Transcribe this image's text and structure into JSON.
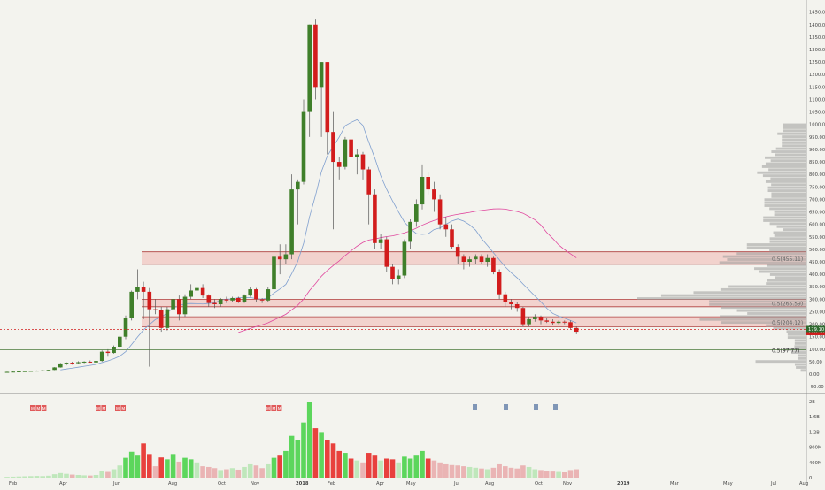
{
  "colors": {
    "background": "#f3f3ee",
    "up": "#3f7f2a",
    "down": "#d21c1c",
    "vol_up": "#5cd65c",
    "vol_down": "#e8413d",
    "vol_up_light": "#bfe7bb",
    "vol_down_light": "#eab4b4",
    "ma_short": "#7f9fcf",
    "ma_long": "#e0479e",
    "zone_fill": "#f1b7b2",
    "zone_line": "#b0403e",
    "profile": "#9a9a9a",
    "marker_red": "#e05a5a",
    "marker_blue": "#7f96b6"
  },
  "chart_data": {
    "type": "candlestick",
    "interval": "weekly",
    "y_axis": {
      "ticks": [
        1450,
        1400,
        1350,
        1300,
        1250,
        1200,
        1150,
        1100,
        1050,
        1000,
        950,
        900,
        850,
        800,
        750,
        700,
        650,
        600,
        550,
        500,
        450,
        400,
        350,
        300,
        250,
        200,
        150,
        100,
        50,
        0,
        -50
      ],
      "tick_labels": [
        "1450.00",
        "1400.00",
        "1350.00",
        "1300.00",
        "1250.00",
        "1200.00",
        "1150.00",
        "1100.00",
        "1050.00",
        "1000.00",
        "950.00",
        "900.00",
        "850.00",
        "800.00",
        "750.00",
        "700.00",
        "650.00",
        "600.00",
        "550.00",
        "500.00",
        "450.00",
        "400.00",
        "350.00",
        "300.00",
        "250.00",
        "200.00",
        "150.00",
        "100.00",
        "50.00",
        "0.00",
        "-50.00"
      ],
      "range": [
        -60,
        1470
      ],
      "last_price": 170.36,
      "last_price_label": "170.36",
      "ref_price": 179.1,
      "ref_price_label": "179.10"
    },
    "volume_axis": {
      "ticks": [
        2000000000,
        1600000000,
        1200000000,
        800000000,
        400000000,
        0
      ],
      "tick_labels": [
        "2B",
        "1.6B",
        "1.2B",
        "800M",
        "400M",
        "0"
      ]
    },
    "x_axis": {
      "labels": [
        "Feb",
        "Apr",
        "Jun",
        "Aug",
        "Oct",
        "Nov",
        "2018",
        "Feb",
        "Apr",
        "May",
        "Jul",
        "Aug",
        "Oct",
        "Nov",
        "2019",
        "Mar",
        "May",
        "Jul",
        "Aug"
      ]
    },
    "candles": [
      {
        "o": 8,
        "h": 10,
        "l": 7,
        "c": 9,
        "v": 20
      },
      {
        "o": 9,
        "h": 11,
        "l": 8,
        "c": 10,
        "v": 25
      },
      {
        "o": 10,
        "h": 12,
        "l": 9,
        "c": 11,
        "v": 30
      },
      {
        "o": 11,
        "h": 13,
        "l": 10,
        "c": 12,
        "v": 35
      },
      {
        "o": 12,
        "h": 14,
        "l": 11,
        "c": 13,
        "v": 40
      },
      {
        "o": 13,
        "h": 15,
        "l": 12,
        "c": 14,
        "v": 45
      },
      {
        "o": 14,
        "h": 16,
        "l": 13,
        "c": 15,
        "v": 40
      },
      {
        "o": 15,
        "h": 18,
        "l": 14,
        "c": 17,
        "v": 50
      },
      {
        "o": 17,
        "h": 28,
        "l": 16,
        "c": 27,
        "v": 90
      },
      {
        "o": 27,
        "h": 45,
        "l": 26,
        "c": 43,
        "v": 120
      },
      {
        "o": 43,
        "h": 48,
        "l": 35,
        "c": 46,
        "v": 100
      },
      {
        "o": 46,
        "h": 50,
        "l": 38,
        "c": 44,
        "v": 80
      },
      {
        "o": 44,
        "h": 52,
        "l": 40,
        "c": 48,
        "v": 70
      },
      {
        "o": 48,
        "h": 52,
        "l": 44,
        "c": 50,
        "v": 60
      },
      {
        "o": 50,
        "h": 55,
        "l": 46,
        "c": 47,
        "v": 55
      },
      {
        "o": 47,
        "h": 55,
        "l": 42,
        "c": 53,
        "v": 70
      },
      {
        "o": 53,
        "h": 95,
        "l": 50,
        "c": 90,
        "v": 180
      },
      {
        "o": 90,
        "h": 100,
        "l": 70,
        "c": 85,
        "v": 150
      },
      {
        "o": 85,
        "h": 115,
        "l": 82,
        "c": 110,
        "v": 220
      },
      {
        "o": 110,
        "h": 155,
        "l": 105,
        "c": 150,
        "v": 320
      },
      {
        "o": 150,
        "h": 235,
        "l": 140,
        "c": 225,
        "v": 520
      },
      {
        "o": 225,
        "h": 335,
        "l": 215,
        "c": 330,
        "v": 680
      },
      {
        "o": 330,
        "h": 420,
        "l": 300,
        "c": 350,
        "v": 600
      },
      {
        "o": 350,
        "h": 370,
        "l": 220,
        "c": 330,
        "v": 900
      },
      {
        "o": 330,
        "h": 345,
        "l": 30,
        "c": 260,
        "v": 620
      },
      {
        "o": 260,
        "h": 300,
        "l": 240,
        "c": 258,
        "v": 300
      },
      {
        "o": 258,
        "h": 270,
        "l": 170,
        "c": 185,
        "v": 530
      },
      {
        "o": 185,
        "h": 270,
        "l": 175,
        "c": 260,
        "v": 480
      },
      {
        "o": 260,
        "h": 305,
        "l": 245,
        "c": 300,
        "v": 620
      },
      {
        "o": 300,
        "h": 315,
        "l": 215,
        "c": 240,
        "v": 420
      },
      {
        "o": 240,
        "h": 320,
        "l": 230,
        "c": 310,
        "v": 520
      },
      {
        "o": 310,
        "h": 360,
        "l": 300,
        "c": 335,
        "v": 480
      },
      {
        "o": 335,
        "h": 355,
        "l": 300,
        "c": 345,
        "v": 400
      },
      {
        "o": 345,
        "h": 360,
        "l": 305,
        "c": 315,
        "v": 300
      },
      {
        "o": 315,
        "h": 320,
        "l": 270,
        "c": 285,
        "v": 280
      },
      {
        "o": 285,
        "h": 300,
        "l": 265,
        "c": 280,
        "v": 250
      },
      {
        "o": 280,
        "h": 305,
        "l": 270,
        "c": 300,
        "v": 200
      },
      {
        "o": 300,
        "h": 310,
        "l": 285,
        "c": 295,
        "v": 220
      },
      {
        "o": 295,
        "h": 310,
        "l": 290,
        "c": 305,
        "v": 250
      },
      {
        "o": 305,
        "h": 310,
        "l": 285,
        "c": 290,
        "v": 210
      },
      {
        "o": 290,
        "h": 320,
        "l": 285,
        "c": 315,
        "v": 280
      },
      {
        "o": 315,
        "h": 350,
        "l": 310,
        "c": 340,
        "v": 350
      },
      {
        "o": 340,
        "h": 345,
        "l": 290,
        "c": 300,
        "v": 320
      },
      {
        "o": 300,
        "h": 305,
        "l": 285,
        "c": 295,
        "v": 250
      },
      {
        "o": 295,
        "h": 350,
        "l": 290,
        "c": 340,
        "v": 350
      },
      {
        "o": 340,
        "h": 480,
        "l": 330,
        "c": 470,
        "v": 520
      },
      {
        "o": 470,
        "h": 520,
        "l": 400,
        "c": 460,
        "v": 600
      },
      {
        "o": 460,
        "h": 520,
        "l": 440,
        "c": 480,
        "v": 700
      },
      {
        "o": 480,
        "h": 800,
        "l": 460,
        "c": 740,
        "v": 1100
      },
      {
        "o": 740,
        "h": 780,
        "l": 600,
        "c": 770,
        "v": 1000
      },
      {
        "o": 770,
        "h": 1100,
        "l": 760,
        "c": 1050,
        "v": 1450
      },
      {
        "o": 1050,
        "h": 1400,
        "l": 950,
        "c": 1400,
        "v": 2000
      },
      {
        "o": 1400,
        "h": 1420,
        "l": 1100,
        "c": 1150,
        "v": 1300
      },
      {
        "o": 1150,
        "h": 1250,
        "l": 950,
        "c": 1250,
        "v": 1200
      },
      {
        "o": 1250,
        "h": 1250,
        "l": 880,
        "c": 970,
        "v": 1000
      },
      {
        "o": 970,
        "h": 1050,
        "l": 580,
        "c": 850,
        "v": 900
      },
      {
        "o": 850,
        "h": 870,
        "l": 780,
        "c": 830,
        "v": 700
      },
      {
        "o": 830,
        "h": 950,
        "l": 820,
        "c": 940,
        "v": 650
      },
      {
        "o": 940,
        "h": 960,
        "l": 850,
        "c": 870,
        "v": 500
      },
      {
        "o": 870,
        "h": 900,
        "l": 800,
        "c": 880,
        "v": 450
      },
      {
        "o": 880,
        "h": 890,
        "l": 780,
        "c": 820,
        "v": 400
      },
      {
        "o": 820,
        "h": 830,
        "l": 600,
        "c": 720,
        "v": 650
      },
      {
        "o": 720,
        "h": 740,
        "l": 500,
        "c": 525,
        "v": 600
      },
      {
        "o": 525,
        "h": 560,
        "l": 500,
        "c": 540,
        "v": 450
      },
      {
        "o": 540,
        "h": 550,
        "l": 410,
        "c": 430,
        "v": 500
      },
      {
        "o": 430,
        "h": 440,
        "l": 360,
        "c": 380,
        "v": 480
      },
      {
        "o": 380,
        "h": 420,
        "l": 360,
        "c": 395,
        "v": 400
      },
      {
        "o": 395,
        "h": 540,
        "l": 385,
        "c": 530,
        "v": 550
      },
      {
        "o": 530,
        "h": 620,
        "l": 500,
        "c": 610,
        "v": 500
      },
      {
        "o": 610,
        "h": 700,
        "l": 590,
        "c": 680,
        "v": 600
      },
      {
        "o": 680,
        "h": 840,
        "l": 660,
        "c": 790,
        "v": 700
      },
      {
        "o": 790,
        "h": 810,
        "l": 720,
        "c": 740,
        "v": 500
      },
      {
        "o": 740,
        "h": 770,
        "l": 650,
        "c": 700,
        "v": 450
      },
      {
        "o": 700,
        "h": 720,
        "l": 580,
        "c": 600,
        "v": 400
      },
      {
        "o": 600,
        "h": 630,
        "l": 550,
        "c": 580,
        "v": 350
      },
      {
        "o": 580,
        "h": 600,
        "l": 500,
        "c": 510,
        "v": 330
      },
      {
        "o": 510,
        "h": 520,
        "l": 440,
        "c": 470,
        "v": 320
      },
      {
        "o": 470,
        "h": 480,
        "l": 420,
        "c": 450,
        "v": 300
      },
      {
        "o": 450,
        "h": 470,
        "l": 430,
        "c": 460,
        "v": 280
      },
      {
        "o": 460,
        "h": 480,
        "l": 440,
        "c": 470,
        "v": 260
      },
      {
        "o": 470,
        "h": 480,
        "l": 440,
        "c": 450,
        "v": 240
      },
      {
        "o": 450,
        "h": 480,
        "l": 430,
        "c": 465,
        "v": 220
      },
      {
        "o": 465,
        "h": 470,
        "l": 400,
        "c": 410,
        "v": 260
      },
      {
        "o": 410,
        "h": 420,
        "l": 300,
        "c": 320,
        "v": 350
      },
      {
        "o": 320,
        "h": 330,
        "l": 270,
        "c": 290,
        "v": 300
      },
      {
        "o": 290,
        "h": 300,
        "l": 260,
        "c": 280,
        "v": 260
      },
      {
        "o": 280,
        "h": 290,
        "l": 250,
        "c": 265,
        "v": 240
      },
      {
        "o": 265,
        "h": 270,
        "l": 190,
        "c": 200,
        "v": 320
      },
      {
        "o": 200,
        "h": 230,
        "l": 190,
        "c": 220,
        "v": 280
      },
      {
        "o": 220,
        "h": 240,
        "l": 210,
        "c": 230,
        "v": 220
      },
      {
        "o": 230,
        "h": 235,
        "l": 200,
        "c": 215,
        "v": 200
      },
      {
        "o": 215,
        "h": 225,
        "l": 205,
        "c": 210,
        "v": 180
      },
      {
        "o": 210,
        "h": 220,
        "l": 195,
        "c": 205,
        "v": 160
      },
      {
        "o": 205,
        "h": 215,
        "l": 200,
        "c": 210,
        "v": 150
      },
      {
        "o": 210,
        "h": 215,
        "l": 200,
        "c": 208,
        "v": 140
      },
      {
        "o": 208,
        "h": 215,
        "l": 180,
        "c": 185,
        "v": 200
      },
      {
        "o": 185,
        "h": 190,
        "l": 160,
        "c": 170,
        "v": 220
      }
    ],
    "volume_scale_max": 2000,
    "zones": [
      {
        "low": 440,
        "high": 490,
        "label": "0.5(455.11)"
      },
      {
        "low": 270,
        "high": 300,
        "label": "0.5(265.59)"
      },
      {
        "low": 190,
        "high": 230,
        "label": "0.5(204.12)"
      }
    ],
    "level_lines": [
      {
        "price": 179.1,
        "style": "dotted",
        "label": ""
      },
      {
        "price": 98,
        "style": "solid",
        "label": "0.5(97.77)"
      }
    ],
    "volume_profile_note": "price-volume profile on right side"
  },
  "markers": {
    "red_groups": [
      {
        "count": 3,
        "label": "M"
      },
      {
        "count": 2,
        "label": "M"
      },
      {
        "count": 2,
        "label": "M"
      },
      {
        "count": 3,
        "label": "M"
      }
    ],
    "blue_count": 4
  }
}
